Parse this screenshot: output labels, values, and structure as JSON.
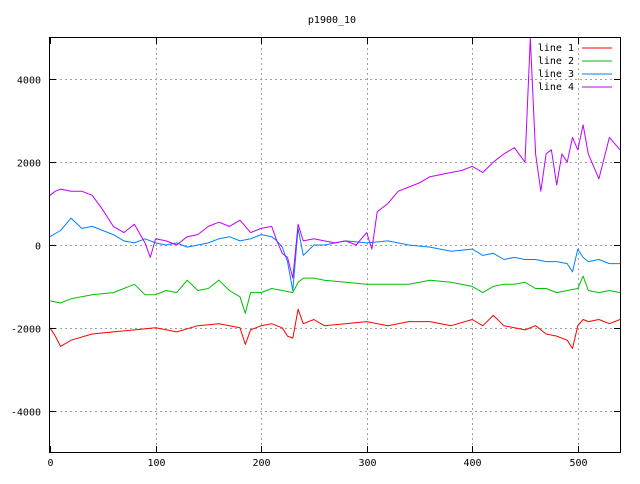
{
  "chart_data": {
    "type": "line",
    "title": "p1900_10",
    "xlabel": "",
    "ylabel": "",
    "xlim": [
      0,
      540
    ],
    "ylim": [
      -5000,
      5000
    ],
    "x_ticks": [
      0,
      100,
      200,
      300,
      400,
      500
    ],
    "y_ticks": [
      -4000,
      -2000,
      0,
      2000,
      4000
    ],
    "grid": true,
    "legend_position": "top-right",
    "series": [
      {
        "name": "line 1",
        "color": "#ff0000",
        "x": [
          0,
          5,
          10,
          20,
          40,
          60,
          80,
          100,
          120,
          140,
          160,
          170,
          180,
          185,
          190,
          200,
          210,
          220,
          225,
          230,
          235,
          240,
          250,
          260,
          280,
          300,
          320,
          340,
          360,
          380,
          400,
          410,
          420,
          430,
          440,
          450,
          460,
          470,
          480,
          490,
          495,
          500,
          505,
          510,
          520,
          530,
          540
        ],
        "y": [
          -2000,
          -2200,
          -2450,
          -2300,
          -2150,
          -2100,
          -2050,
          -2000,
          -2100,
          -1950,
          -1900,
          -1950,
          -2000,
          -2400,
          -2050,
          -1950,
          -1900,
          -2000,
          -2200,
          -2250,
          -1550,
          -1900,
          -1800,
          -1950,
          -1900,
          -1850,
          -1950,
          -1850,
          -1850,
          -1950,
          -1800,
          -1950,
          -1700,
          -1950,
          -2000,
          -2050,
          -1950,
          -2150,
          -2200,
          -2300,
          -2500,
          -1950,
          -1800,
          -1850,
          -1800,
          -1900,
          -1800
        ]
      },
      {
        "name": "line 2",
        "color": "#00c000",
        "x": [
          0,
          10,
          20,
          40,
          60,
          70,
          80,
          90,
          100,
          110,
          120,
          130,
          140,
          150,
          160,
          170,
          180,
          185,
          190,
          200,
          210,
          220,
          230,
          235,
          240,
          250,
          260,
          280,
          300,
          320,
          340,
          360,
          380,
          400,
          410,
          420,
          430,
          440,
          450,
          460,
          470,
          480,
          490,
          500,
          505,
          510,
          520,
          530,
          540
        ],
        "y": [
          -1350,
          -1400,
          -1300,
          -1200,
          -1150,
          -1050,
          -950,
          -1200,
          -1200,
          -1100,
          -1150,
          -850,
          -1100,
          -1050,
          -850,
          -1100,
          -1250,
          -1650,
          -1150,
          -1150,
          -1050,
          -1100,
          -1150,
          -900,
          -800,
          -800,
          -850,
          -900,
          -950,
          -950,
          -950,
          -850,
          -900,
          -1000,
          -1150,
          -1000,
          -950,
          -950,
          -900,
          -1050,
          -1050,
          -1150,
          -1100,
          -1050,
          -750,
          -1100,
          -1150,
          -1100,
          -1150
        ]
      },
      {
        "name": "line 3",
        "color": "#0080ff",
        "x": [
          0,
          10,
          20,
          30,
          40,
          50,
          60,
          70,
          80,
          90,
          100,
          110,
          120,
          130,
          140,
          150,
          160,
          170,
          180,
          190,
          200,
          210,
          215,
          220,
          225,
          230,
          235,
          240,
          250,
          260,
          280,
          300,
          320,
          340,
          360,
          380,
          400,
          410,
          420,
          430,
          440,
          450,
          460,
          470,
          480,
          490,
          495,
          500,
          505,
          510,
          520,
          530,
          540
        ],
        "y": [
          200,
          350,
          650,
          400,
          450,
          350,
          250,
          100,
          50,
          150,
          50,
          0,
          50,
          -50,
          0,
          50,
          150,
          200,
          100,
          150,
          250,
          200,
          100,
          -50,
          -400,
          -1100,
          400,
          -250,
          0,
          0,
          100,
          50,
          100,
          0,
          -50,
          -150,
          -100,
          -250,
          -200,
          -350,
          -300,
          -350,
          -350,
          -400,
          -400,
          -450,
          -650,
          -100,
          -300,
          -400,
          -350,
          -450,
          -450
        ]
      },
      {
        "name": "line 4",
        "color": "#c000ff",
        "x": [
          0,
          5,
          10,
          20,
          30,
          40,
          50,
          60,
          70,
          80,
          90,
          95,
          100,
          110,
          120,
          130,
          140,
          150,
          160,
          170,
          180,
          190,
          200,
          210,
          215,
          220,
          225,
          230,
          235,
          240,
          250,
          260,
          270,
          280,
          290,
          300,
          305,
          310,
          320,
          330,
          340,
          350,
          360,
          370,
          380,
          390,
          400,
          410,
          420,
          430,
          440,
          450,
          455,
          460,
          465,
          470,
          475,
          480,
          485,
          490,
          495,
          500,
          505,
          510,
          520,
          530,
          540
        ],
        "y": [
          1200,
          1300,
          1350,
          1300,
          1300,
          1200,
          850,
          450,
          300,
          500,
          50,
          -300,
          150,
          100,
          0,
          200,
          250,
          450,
          550,
          450,
          600,
          300,
          400,
          450,
          100,
          -200,
          -300,
          -800,
          500,
          100,
          150,
          100,
          50,
          100,
          0,
          300,
          -100,
          800,
          1000,
          1300,
          1400,
          1500,
          1650,
          1700,
          1750,
          1800,
          1900,
          1750,
          2000,
          2200,
          2350,
          2000,
          5000,
          2200,
          1300,
          2200,
          2300,
          1450,
          2200,
          2000,
          2600,
          2300,
          2900,
          2200,
          1600,
          2600,
          2300
        ]
      }
    ]
  }
}
